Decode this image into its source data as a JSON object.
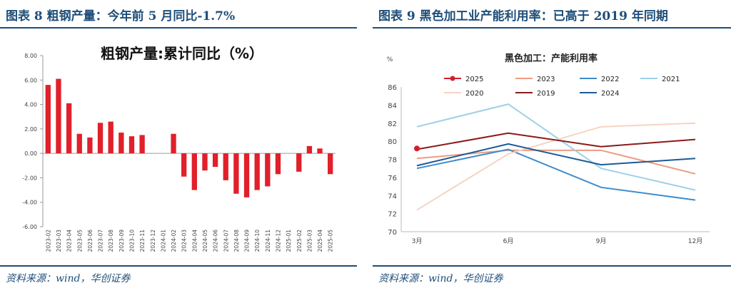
{
  "panels": [
    {
      "title": "图表 8   粗钢产量：今年前 5 月同比-1.7%",
      "source": "资料来源：wind，华创证券"
    },
    {
      "title": "图表 9   黑色加工业产能利用率：已高于 2019 年同期",
      "source": "资料来源：wind，华创证券"
    }
  ],
  "colors": {
    "accent": "#1f4e79",
    "bar": "#e0202a"
  },
  "chart_data": [
    {
      "type": "bar",
      "title": "粗钢产量:累计同比（%）",
      "categories": [
        "2023-02",
        "2023-03",
        "2023-04",
        "2023-05",
        "2023-06",
        "2023-07",
        "2023-08",
        "2023-09",
        "2023-10",
        "2023-11",
        "2023-12",
        "2024-01",
        "2024-02",
        "2024-03",
        "2024-04",
        "2024-05",
        "2024-06",
        "2024-07",
        "2024-08",
        "2024-09",
        "2024-10",
        "2024-11",
        "2024-12",
        "2025-01",
        "2025-02",
        "2025-03",
        "2025-04",
        "2025-05"
      ],
      "values": [
        5.6,
        6.1,
        4.1,
        1.6,
        1.3,
        2.5,
        2.6,
        1.7,
        1.4,
        1.5,
        null,
        null,
        1.6,
        -1.9,
        -3.0,
        -1.4,
        -1.1,
        -2.2,
        -3.3,
        -3.6,
        -3.0,
        -2.7,
        -1.7,
        null,
        -1.5,
        0.6,
        0.4,
        -1.7
      ],
      "ylim": [
        -6,
        8
      ],
      "yticks": [
        "8.00",
        "6.00",
        "4.00",
        "2.00",
        "0.00",
        "-2.00",
        "-4.00",
        "-6.00"
      ],
      "ytick_values": [
        8,
        6,
        4,
        2,
        0,
        -2,
        -4,
        -6
      ]
    },
    {
      "type": "line",
      "title": "黑色加工：产能利用率",
      "ylabel": "%",
      "categories": [
        "3月",
        "6月",
        "9月",
        "12月"
      ],
      "ylim": [
        70,
        86
      ],
      "yticks": [
        70,
        72,
        74,
        76,
        78,
        80,
        82,
        84,
        86
      ],
      "legend_position": "top",
      "series": [
        {
          "name": "2025",
          "color": "#d21f2b",
          "values": [
            79.2,
            null,
            null,
            null
          ],
          "marker": true
        },
        {
          "name": "2023",
          "color": "#ef9b80",
          "values": [
            78.1,
            79.0,
            79.0,
            76.4
          ]
        },
        {
          "name": "2022",
          "color": "#3f8ccc",
          "values": [
            77.0,
            79.1,
            74.9,
            73.5
          ]
        },
        {
          "name": "2021",
          "color": "#9ed0e8",
          "values": [
            81.6,
            84.1,
            77.0,
            74.6
          ]
        },
        {
          "name": "2020",
          "color": "#f7d3c3",
          "values": [
            72.4,
            78.6,
            81.6,
            82.0
          ]
        },
        {
          "name": "2019",
          "color": "#8b1a1a",
          "values": [
            79.1,
            80.9,
            79.4,
            80.2
          ]
        },
        {
          "name": "2024",
          "color": "#1c5a96",
          "values": [
            77.3,
            79.7,
            77.4,
            78.1
          ]
        }
      ]
    }
  ]
}
